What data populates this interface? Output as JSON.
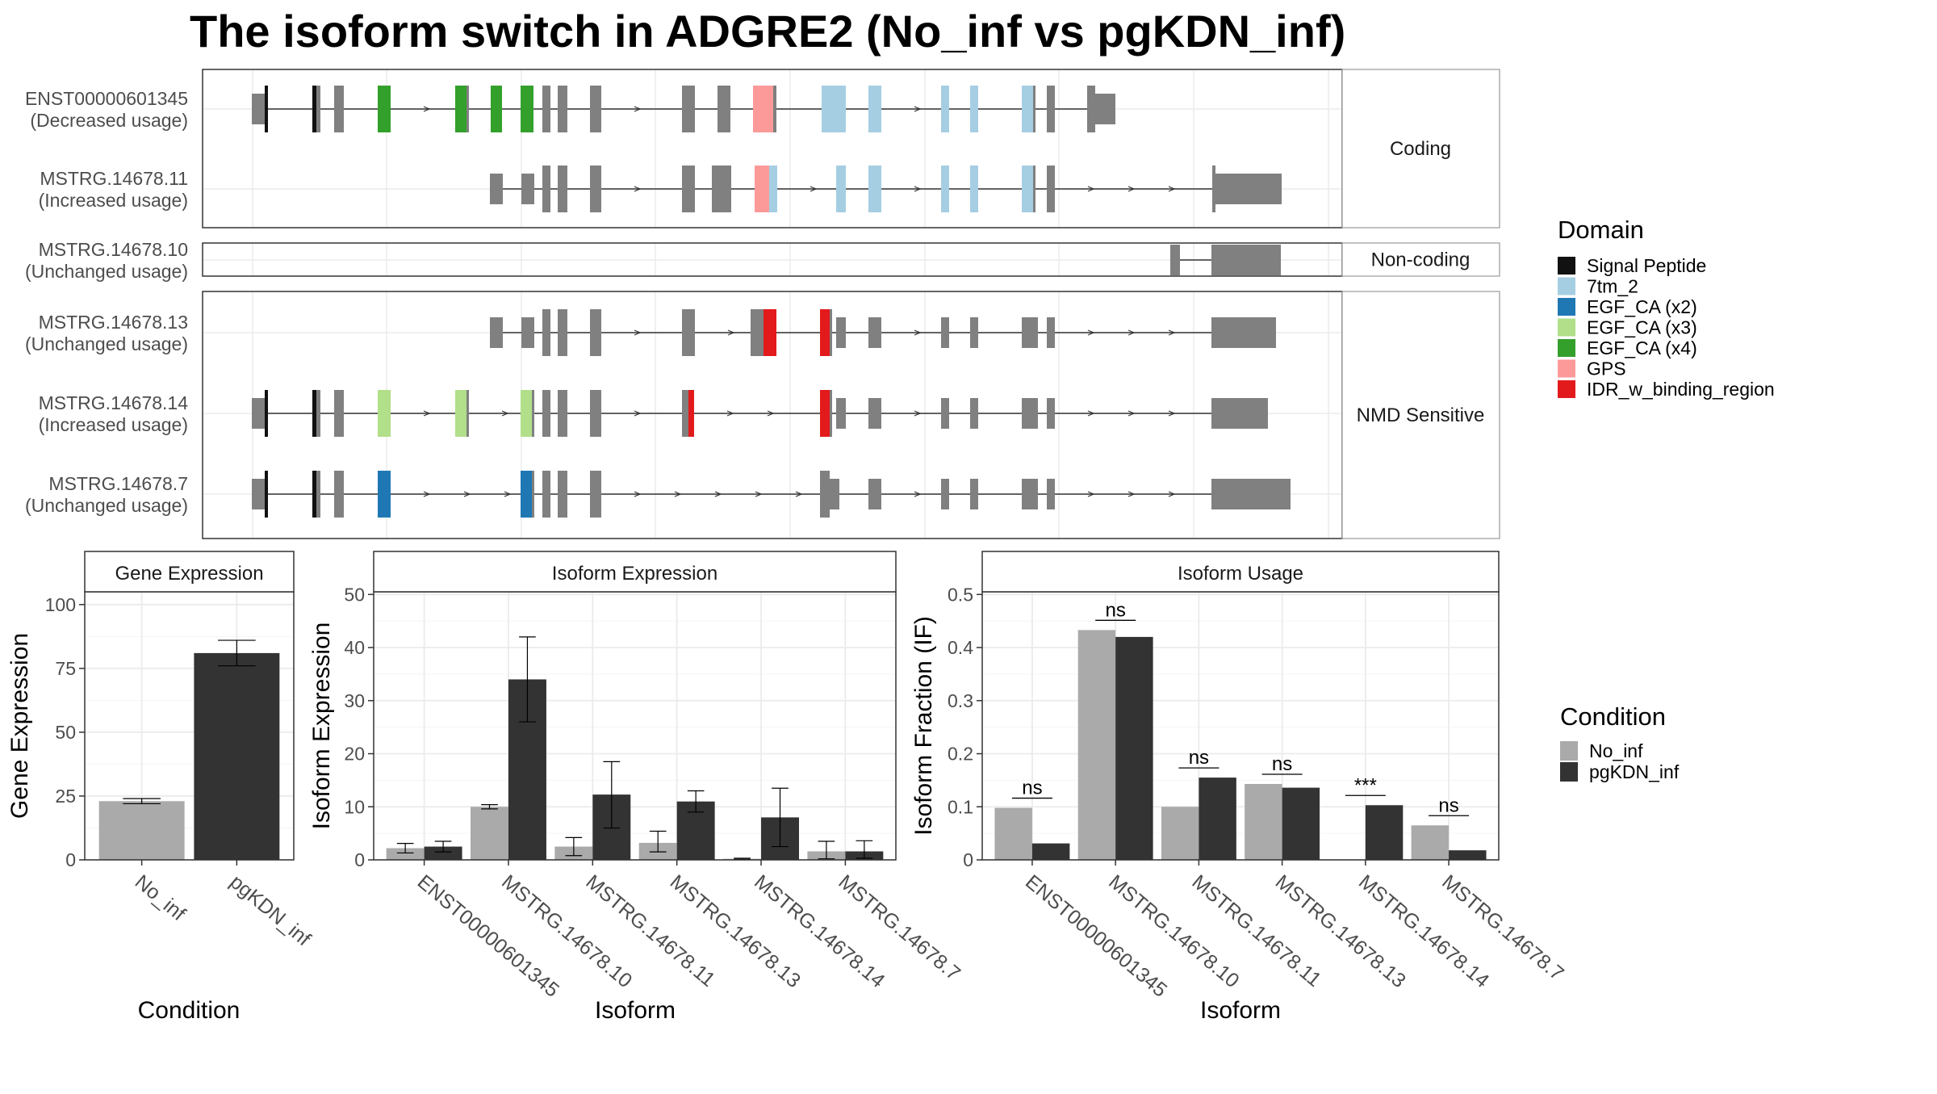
{
  "title": "The isoform switch in ADGRE2 (No_inf vs pgKDN_inf)",
  "colors": {
    "signal_peptide": "#111111",
    "7tm_2": "#a6cee3",
    "egf_ca_x2": "#1f78b4",
    "egf_ca_x3": "#b2df8a",
    "egf_ca_x4": "#33a02c",
    "gps": "#fb9a99",
    "idr": "#e31a1c",
    "exon_grey": "#808080",
    "no_inf": "#aaaaaa",
    "pgkdn_inf": "#333333"
  },
  "structure_panel": {
    "groups": [
      {
        "label": "Coding",
        "transcripts": [
          "ENST00000601345",
          "MSTRG.14678.11"
        ]
      },
      {
        "label": "Non-coding",
        "transcripts": [
          "MSTRG.14678.10"
        ]
      },
      {
        "label": "NMD Sensitive",
        "transcripts": [
          "MSTRG.14678.13",
          "MSTRG.14678.14",
          "MSTRG.14678.7"
        ]
      }
    ],
    "transcripts": [
      {
        "id": "ENST00000601345",
        "usage": "(Decreased usage)"
      },
      {
        "id": "MSTRG.14678.11",
        "usage": "(Increased usage)"
      },
      {
        "id": "MSTRG.14678.10",
        "usage": "(Unchanged usage)"
      },
      {
        "id": "MSTRG.14678.13",
        "usage": "(Unchanged usage)"
      },
      {
        "id": "MSTRG.14678.14",
        "usage": "(Increased usage)"
      },
      {
        "id": "MSTRG.14678.7",
        "usage": "(Unchanged usage)"
      }
    ]
  },
  "legend_domain": {
    "title": "Domain",
    "items": [
      {
        "label": "Signal Peptide",
        "color_key": "signal_peptide"
      },
      {
        "label": "7tm_2",
        "color_key": "7tm_2"
      },
      {
        "label": "EGF_CA (x2)",
        "color_key": "egf_ca_x2"
      },
      {
        "label": "EGF_CA (x3)",
        "color_key": "egf_ca_x3"
      },
      {
        "label": "EGF_CA (x4)",
        "color_key": "egf_ca_x4"
      },
      {
        "label": "GPS",
        "color_key": "gps"
      },
      {
        "label": "IDR_w_binding_region",
        "color_key": "idr"
      }
    ]
  },
  "legend_condition": {
    "title": "Condition",
    "items": [
      {
        "label": "No_inf",
        "color_key": "no_inf"
      },
      {
        "label": "pgKDN_inf",
        "color_key": "pgkdn_inf"
      }
    ]
  },
  "chart_data": [
    {
      "type": "bar",
      "title": "Gene Expression",
      "xlabel": "Condition",
      "ylabel": "Gene Expression",
      "categories": [
        "No_inf",
        "pgKDN_inf"
      ],
      "values": [
        23,
        81
      ],
      "error_low": [
        22,
        76
      ],
      "error_high": [
        24,
        86
      ],
      "ylim": [
        0,
        105
      ],
      "yticks": [
        0,
        25,
        50,
        75,
        100
      ],
      "grid": true
    },
    {
      "type": "bar",
      "title": "Isoform Expression",
      "xlabel": "Isoform",
      "ylabel": "Isoform Expression",
      "categories": [
        "ENST00000601345",
        "MSTRG.14678.10",
        "MSTRG.14678.11",
        "MSTRG.14678.13",
        "MSTRG.14678.14",
        "MSTRG.14678.7"
      ],
      "series": [
        {
          "name": "No_inf",
          "values": [
            2.2,
            10,
            2.5,
            3.2,
            0.2,
            1.6
          ],
          "error_low": [
            1.3,
            9.6,
            0.8,
            1.5,
            0.1,
            0.2
          ],
          "error_high": [
            3.1,
            10.4,
            4.2,
            5.4,
            0.3,
            3.5
          ]
        },
        {
          "name": "pgKDN_inf",
          "values": [
            2.5,
            34,
            12.3,
            11,
            8,
            1.6
          ],
          "error_low": [
            1.5,
            26,
            6,
            9,
            2.5,
            0.3
          ],
          "error_high": [
            3.5,
            42,
            18.5,
            13,
            13.5,
            3.6
          ]
        }
      ],
      "ylim": [
        0,
        50.5
      ],
      "yticks": [
        0,
        10,
        20,
        30,
        40,
        50
      ],
      "grid": true
    },
    {
      "type": "bar",
      "title": "Isoform Usage",
      "xlabel": "Isoform",
      "ylabel": "Isoform Fraction (IF)",
      "categories": [
        "ENST00000601345",
        "MSTRG.14678.10",
        "MSTRG.14678.11",
        "MSTRG.14678.13",
        "MSTRG.14678.14",
        "MSTRG.14678.7"
      ],
      "series": [
        {
          "name": "No_inf",
          "values": [
            0.098,
            0.433,
            0.1,
            0.143,
            0,
            0.065
          ]
        },
        {
          "name": "pgKDN_inf",
          "values": [
            0.031,
            0.42,
            0.155,
            0.136,
            0.103,
            0.018
          ]
        }
      ],
      "significance": [
        "ns",
        "ns",
        "ns",
        "ns",
        "***",
        "ns"
      ],
      "ylim": [
        0,
        0.505
      ],
      "yticks": [
        0,
        0.1,
        0.2,
        0.3,
        0.4,
        0.5
      ],
      "grid": true
    }
  ]
}
